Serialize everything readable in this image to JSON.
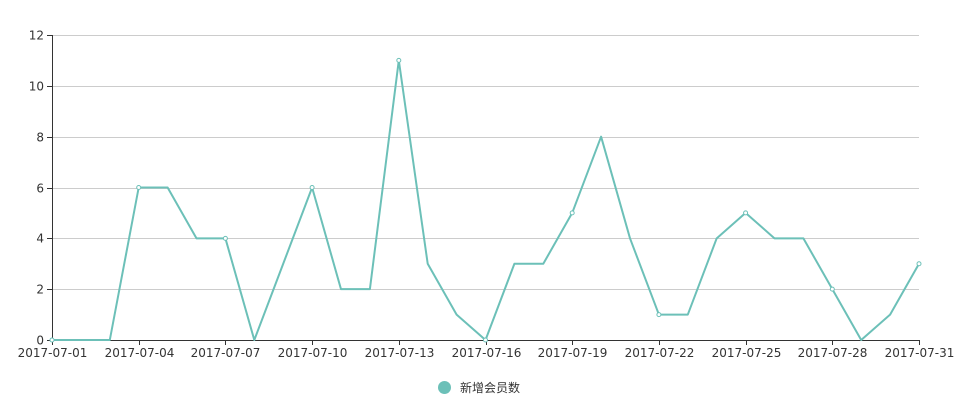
{
  "colors": {
    "series": "#6cc0b8",
    "grid": "#cccccc",
    "axis": "#333333",
    "text": "#333333"
  },
  "legend": {
    "label": "新增会员数"
  },
  "chart_data": {
    "type": "line",
    "title": "",
    "xlabel": "",
    "ylabel": "",
    "ylim": [
      0,
      12
    ],
    "y_ticks": [
      0,
      2,
      4,
      6,
      8,
      10,
      12
    ],
    "grid": true,
    "legend_position": "bottom-center",
    "x_tick_labels": [
      "2017-07-01",
      "2017-07-04",
      "2017-07-07",
      "2017-07-10",
      "2017-07-13",
      "2017-07-16",
      "2017-07-19",
      "2017-07-22",
      "2017-07-25",
      "2017-07-28",
      "2017-07-31"
    ],
    "categories": [
      "2017-07-01",
      "2017-07-02",
      "2017-07-03",
      "2017-07-04",
      "2017-07-05",
      "2017-07-06",
      "2017-07-07",
      "2017-07-08",
      "2017-07-09",
      "2017-07-10",
      "2017-07-11",
      "2017-07-12",
      "2017-07-13",
      "2017-07-14",
      "2017-07-15",
      "2017-07-16",
      "2017-07-17",
      "2017-07-18",
      "2017-07-19",
      "2017-07-20",
      "2017-07-21",
      "2017-07-22",
      "2017-07-23",
      "2017-07-24",
      "2017-07-25",
      "2017-07-26",
      "2017-07-27",
      "2017-07-28",
      "2017-07-29",
      "2017-07-30",
      "2017-07-31"
    ],
    "series": [
      {
        "name": "新增会员数",
        "values": [
          0,
          0,
          0,
          6,
          6,
          4,
          4,
          0,
          3,
          6,
          2,
          2,
          11,
          3,
          1,
          0,
          3,
          3,
          5,
          8,
          4,
          1,
          1,
          4,
          5,
          4,
          4,
          2,
          0,
          1,
          3
        ]
      }
    ]
  }
}
